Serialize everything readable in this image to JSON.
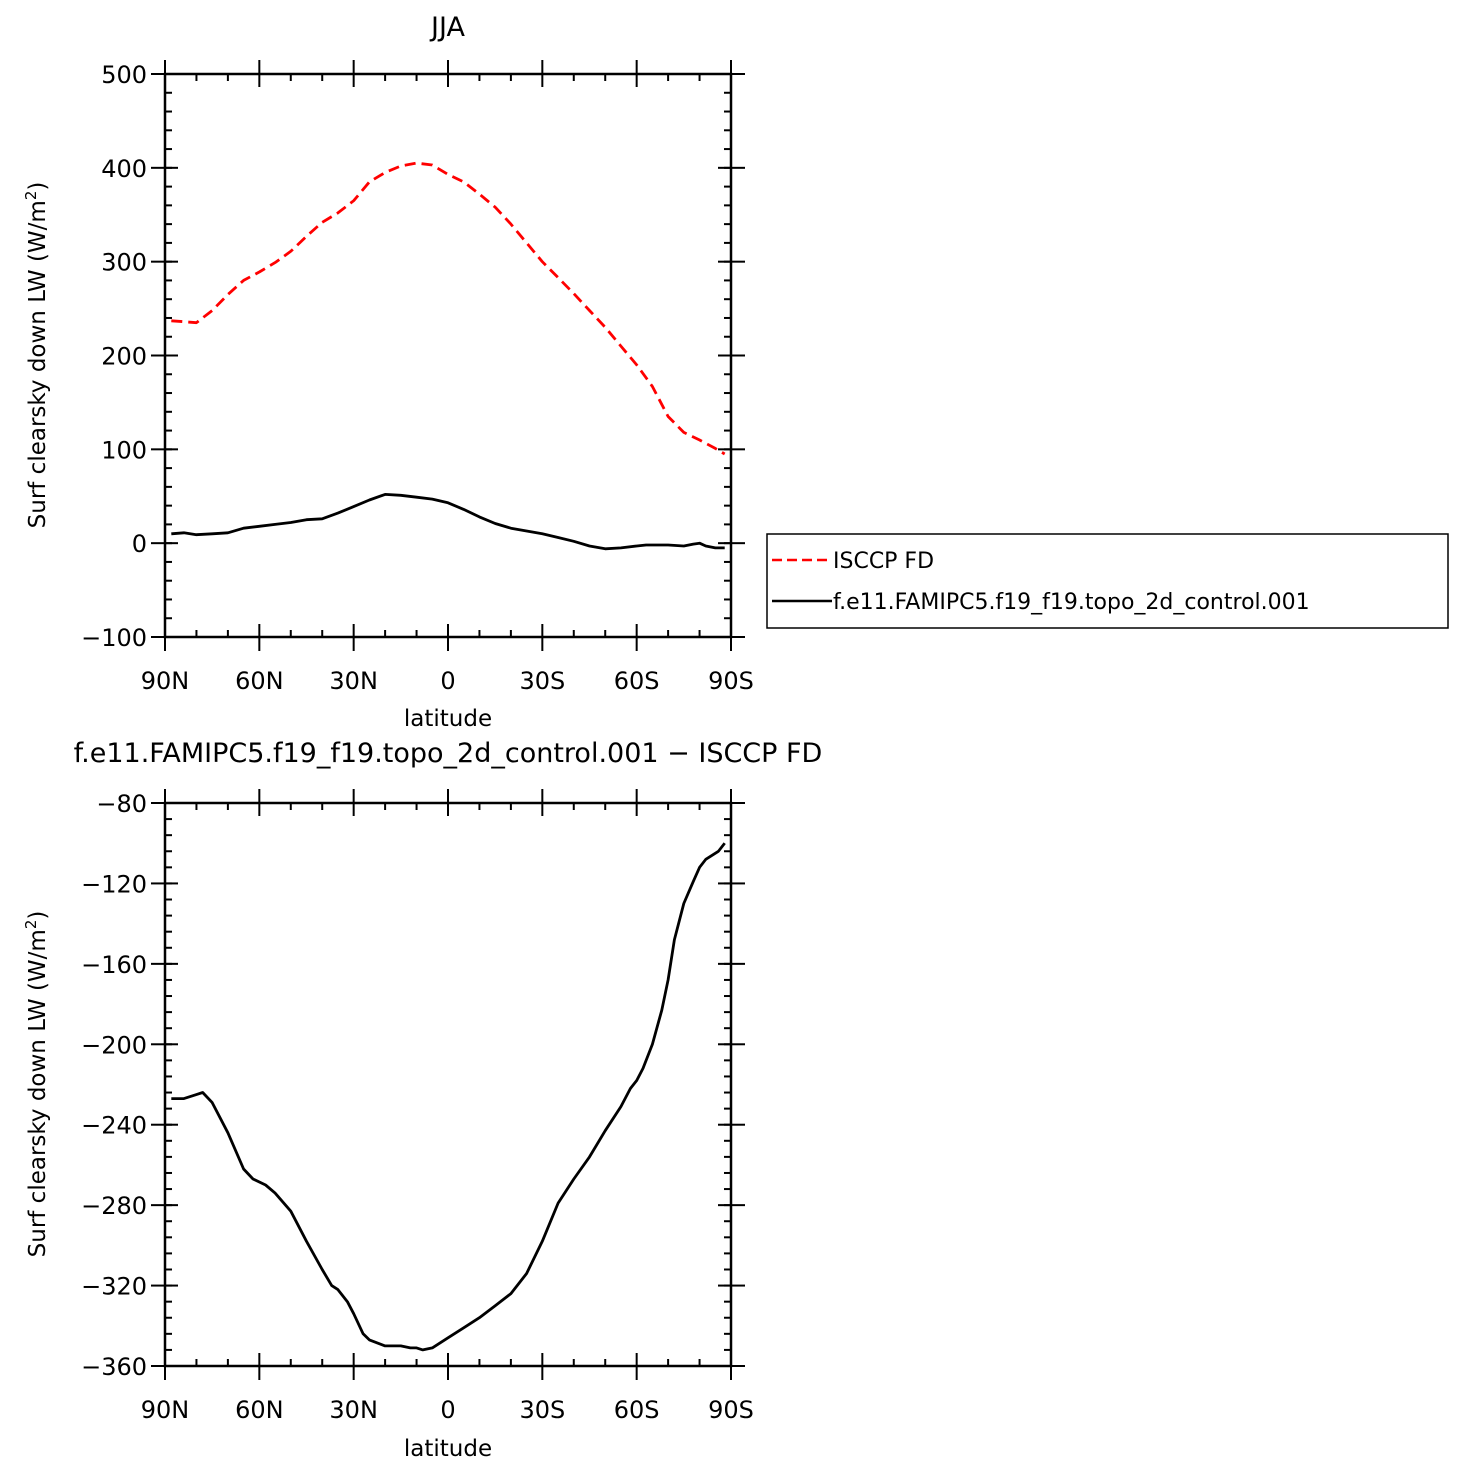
{
  "chart_data": [
    {
      "type": "line",
      "title": "JJA",
      "xlabel": "latitude",
      "ylabel": "Surf clearsky down LW (W/m²)",
      "ylabel_parts": {
        "main": "Surf clearsky down LW (W/m",
        "sup": "2",
        "tail": ")"
      },
      "xlim": [
        90,
        -90
      ],
      "ylim": [
        -100,
        500
      ],
      "xticks": [
        90,
        60,
        30,
        0,
        -30,
        -60,
        -90
      ],
      "xtick_labels": [
        "90N",
        "60N",
        "30N",
        "0",
        "30S",
        "60S",
        "90S"
      ],
      "yticks": [
        -100,
        0,
        100,
        200,
        300,
        400,
        500
      ],
      "ytick_labels": [
        "−100",
        "0",
        "100",
        "200",
        "300",
        "400",
        "500"
      ],
      "legend": "right",
      "series": [
        {
          "name": "ISCCP FD",
          "color": "#ff0000",
          "style": "dashed",
          "x": [
            88,
            84,
            80,
            75,
            70,
            65,
            60,
            55,
            50,
            45,
            40,
            35,
            30,
            25,
            20,
            15,
            10,
            5,
            0,
            -5,
            -10,
            -15,
            -20,
            -25,
            -30,
            -35,
            -40,
            -45,
            -50,
            -55,
            -60,
            -65,
            -70,
            -75,
            -80,
            -85,
            -88
          ],
          "y": [
            237,
            236,
            235,
            248,
            265,
            280,
            289,
            299,
            311,
            327,
            342,
            352,
            365,
            385,
            395,
            402,
            405,
            403,
            393,
            385,
            372,
            358,
            340,
            320,
            300,
            283,
            266,
            248,
            230,
            210,
            190,
            167,
            135,
            118,
            110,
            101,
            95
          ]
        },
        {
          "name": "f.e11.FAMIPC5.f19_f19.topo_2d_control.001",
          "color": "#000000",
          "style": "solid",
          "x": [
            88,
            84,
            80,
            75,
            70,
            65,
            60,
            55,
            50,
            45,
            40,
            35,
            30,
            25,
            20,
            15,
            10,
            5,
            0,
            -5,
            -10,
            -15,
            -20,
            -25,
            -30,
            -35,
            -40,
            -45,
            -50,
            -55,
            -60,
            -63,
            -65,
            -70,
            -75,
            -78,
            -80,
            -82,
            -85,
            -88
          ],
          "y": [
            10,
            11,
            9,
            10,
            11,
            16,
            18,
            20,
            22,
            25,
            26,
            32,
            39,
            46,
            52,
            51,
            49,
            47,
            43,
            36,
            28,
            21,
            16,
            13,
            10,
            6,
            2,
            -3,
            -6,
            -5,
            -3,
            -2,
            -2,
            -2,
            -3,
            -1,
            0,
            -3,
            -5,
            -5
          ]
        }
      ]
    },
    {
      "type": "line",
      "title": "f.e11.FAMIPC5.f19_f19.topo_2d_control.001 − ISCCP FD",
      "xlabel": "latitude",
      "ylabel": "Surf clearsky down LW (W/m²)",
      "ylabel_parts": {
        "main": "Surf clearsky down LW (W/m",
        "sup": "2",
        "tail": ")"
      },
      "xlim": [
        90,
        -90
      ],
      "ylim": [
        -360,
        -80
      ],
      "xticks": [
        90,
        60,
        30,
        0,
        -30,
        -60,
        -90
      ],
      "xtick_labels": [
        "90N",
        "60N",
        "30N",
        "0",
        "30S",
        "60S",
        "90S"
      ],
      "yticks": [
        -360,
        -320,
        -280,
        -240,
        -200,
        -160,
        -120,
        -80
      ],
      "ytick_labels": [
        "−360",
        "−320",
        "−280",
        "−240",
        "−200",
        "−160",
        "−120",
        "−80"
      ],
      "series": [
        {
          "color": "#000000",
          "style": "solid",
          "x": [
            88,
            84,
            80,
            78,
            75,
            70,
            65,
            62,
            58,
            55,
            50,
            45,
            40,
            37,
            35,
            32,
            30,
            27,
            25,
            20,
            15,
            12,
            10,
            8,
            5,
            0,
            -5,
            -10,
            -15,
            -20,
            -25,
            -30,
            -35,
            -40,
            -45,
            -50,
            -55,
            -58,
            -60,
            -62,
            -65,
            -68,
            -70,
            -72,
            -75,
            -78,
            -80,
            -82,
            -84,
            -86,
            -88
          ],
          "y": [
            -227,
            -227,
            -225,
            -224,
            -229,
            -244,
            -262,
            -267,
            -270,
            -274,
            -283,
            -298,
            -312,
            -320,
            -322,
            -328,
            -334,
            -344,
            -347,
            -350,
            -350,
            -351,
            -351,
            -352,
            -351,
            -346,
            -341,
            -336,
            -330,
            -324,
            -314,
            -298,
            -279,
            -267,
            -256,
            -243,
            -231,
            -222,
            -218,
            -212,
            -200,
            -183,
            -168,
            -148,
            -130,
            -119,
            -112,
            -108,
            -106,
            -104,
            -100
          ]
        }
      ]
    }
  ]
}
